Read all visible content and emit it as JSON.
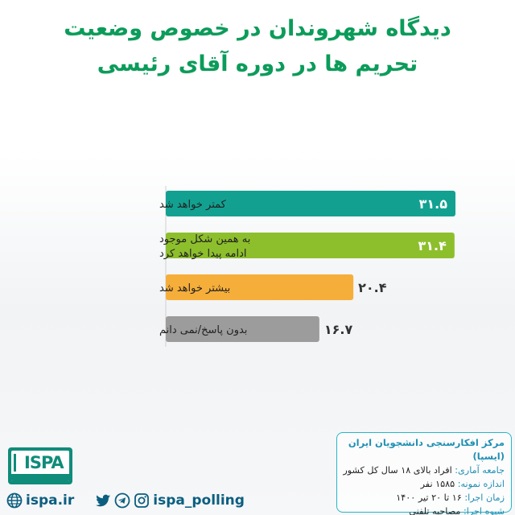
{
  "title_lines": [
    "دیدگاه شهروندان در خصوص وضعیت",
    "تحریم ها در دوره آقای رئیسی"
  ],
  "colors": {
    "title": "#0a9c5a",
    "bar_1": "#12a191",
    "bar_2": "#8dbf2d",
    "bar_3": "#f6ae3a",
    "bar_4": "#9c9c9c",
    "accent": "#1f8fb2"
  },
  "chart_data": {
    "type": "bar",
    "orientation": "horizontal",
    "title": "دیدگاه شهروندان در خصوص وضعیت تحریم ها در دوره آقای رئیسی",
    "categories": [
      [
        "کمتر خواهد شد"
      ],
      [
        "به همین شکل موجود",
        "ادامه پیدا خواهد کرد"
      ],
      [
        "بیشتر خواهد شد"
      ],
      [
        "بدون پاسخ/نمی دانم"
      ]
    ],
    "values": [
      31.5,
      31.4,
      20.4,
      16.7
    ],
    "value_labels": [
      "۳۱.۵",
      "۳۱.۴",
      "۲۰.۴",
      "۱۶.۷"
    ],
    "xlim": [
      0,
      31.5
    ],
    "grid": false,
    "legend": "none"
  },
  "info": {
    "org": "مرکز افکارسنجی دانشجویان ایران (ایسپا)",
    "rows": [
      {
        "key": "جامعه آماری:",
        "value": "افراد بالای ۱۸ سال کل کشور"
      },
      {
        "key": "اندازه نمونه:",
        "value": "۱۵۸۵ نفر"
      },
      {
        "key": "زمان اجرا:",
        "value": "۱۶ تا ۲۰ تیر ۱۴۰۰"
      },
      {
        "key": "شیوه اجرا:",
        "value": "مصاحبه تلفنی"
      }
    ]
  },
  "logo": {
    "text": "ISPA"
  },
  "footer": {
    "website": "ispa.ir",
    "handle": "ispa_polling",
    "icons": [
      "globe-icon",
      "twitter-icon",
      "telegram-icon",
      "instagram-icon"
    ]
  }
}
